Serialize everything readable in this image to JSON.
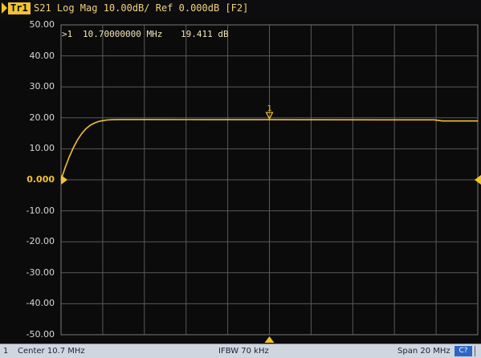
{
  "title_bar": {
    "trace_badge": "Tr1",
    "text": "S21 Log Mag 10.00dB/ Ref 0.000dB [F2]"
  },
  "marker_readout": {
    "id": ">1",
    "frequency": "10.70000000 MHz",
    "value": "19.411 dB"
  },
  "status_bar": {
    "channel": "1",
    "center": "Center 10.7 MHz",
    "ifbw": "IFBW 70 kHz",
    "span": "Span 20 MHz",
    "badge": "C?"
  },
  "colors": {
    "background": "#0b0b0c",
    "grid": "#5a5a5a",
    "trace": "#f2c230",
    "text": "#d9d9d9",
    "status_bar": "#cfd6df"
  },
  "chart_data": {
    "type": "line",
    "ylabel_ticks": [
      "50.00",
      "40.00",
      "30.00",
      "20.00",
      "10.00",
      "0.000",
      "-10.00",
      "-20.00",
      "-30.00",
      "-40.00",
      "-50.00"
    ],
    "ylim": [
      -50,
      50
    ],
    "xlim": [
      0.7,
      20.7
    ],
    "x_unit": "MHz",
    "reference_level": 0,
    "grid": true,
    "series": [
      {
        "x": [
          0.7,
          0.9,
          1.1,
          1.3,
          1.5,
          1.7,
          1.9,
          2.1,
          2.3,
          2.5,
          2.7,
          2.9,
          3.2,
          3.6,
          4.0,
          5.0,
          7.0,
          10.7,
          13.0,
          16.0,
          18.6,
          19.0,
          20.7
        ],
        "y": [
          0.0,
          4.0,
          7.5,
          10.5,
          13.0,
          15.0,
          16.5,
          17.6,
          18.3,
          18.8,
          19.1,
          19.3,
          19.4,
          19.45,
          19.45,
          19.45,
          19.42,
          19.41,
          19.38,
          19.35,
          19.35,
          19.0,
          19.0
        ]
      }
    ],
    "markers": [
      {
        "label": "1",
        "x": 10.7,
        "y": 19.411
      }
    ]
  }
}
